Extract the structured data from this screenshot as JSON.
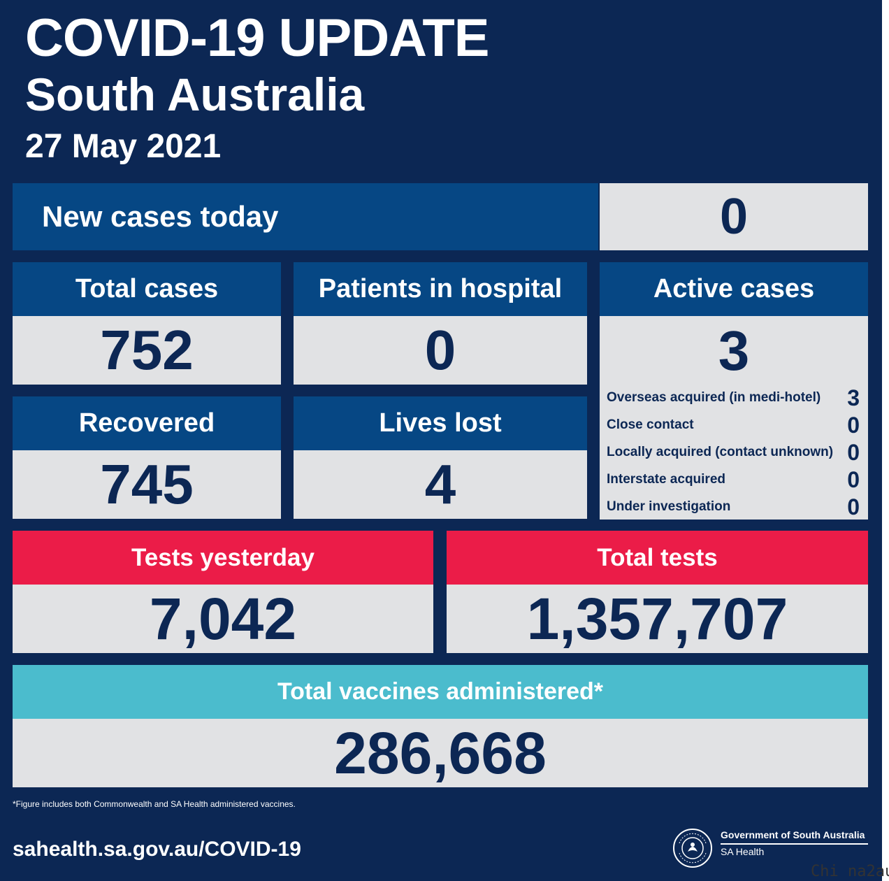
{
  "header": {
    "title": "COVID-19 UPDATE",
    "subtitle": "South Australia",
    "date": "27 May 2021"
  },
  "new_cases": {
    "label": "New cases today",
    "value": "0"
  },
  "total_cases": {
    "label": "Total cases",
    "value": "752"
  },
  "hospital": {
    "label": "Patients in hospital",
    "value": "0"
  },
  "active": {
    "label": "Active cases",
    "value": "3",
    "breakdown": [
      {
        "label": "Overseas acquired (in medi-hotel)",
        "value": "3"
      },
      {
        "label": "Close contact",
        "value": "0"
      },
      {
        "label": "Locally acquired (contact unknown)",
        "value": "0"
      },
      {
        "label": "Interstate acquired",
        "value": "0"
      },
      {
        "label": "Under investigation",
        "value": "0"
      }
    ]
  },
  "recovered": {
    "label": "Recovered",
    "value": "745"
  },
  "lives_lost": {
    "label": "Lives lost",
    "value": "4"
  },
  "tests_yesterday": {
    "label": "Tests yesterday",
    "value": "7,042"
  },
  "total_tests": {
    "label": "Total tests",
    "value": "1,357,707"
  },
  "vaccines": {
    "label": "Total vaccines administered*",
    "value": "286,668"
  },
  "footer": {
    "footnote": "*Figure includes both Commonwealth and SA Health administered vaccines.",
    "url": "sahealth.sa.gov.au/COVID-19",
    "gov_name": "Government of South Australia",
    "gov_dept": "SA Health",
    "logo_text": "SOUTH AUSTRALIA"
  },
  "watermark": "Chi na2au",
  "colors": {
    "background": "#0c2754",
    "header_blue": "#064784",
    "cell_grey": "#e1e2e4",
    "tests_red": "#eb1c48",
    "vaccine_teal": "#4bbccd",
    "number_navy": "#0c2754"
  }
}
